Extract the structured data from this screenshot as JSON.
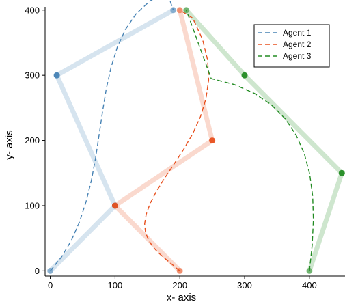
{
  "chart_data": {
    "type": "line",
    "xlabel": "x- axis",
    "ylabel": "y- axis",
    "xlim": [
      -8,
      455
    ],
    "ylim": [
      -8,
      405
    ],
    "xticks": [
      0,
      100,
      200,
      300,
      400
    ],
    "yticks": [
      0,
      100,
      200,
      300,
      400
    ],
    "grid": false,
    "legend_position": "top-right",
    "series": [
      {
        "name": "Agent 1",
        "color": "#4682b4",
        "control_points": [
          [
            0,
            0
          ],
          [
            100,
            100
          ],
          [
            10,
            300
          ],
          [
            190,
            400
          ]
        ],
        "curve": [
          [
            0,
            0
          ],
          [
            17.3,
            21.2
          ],
          [
            32.4,
            46.3
          ],
          [
            45.0,
            74.8
          ],
          [
            55.3,
            106.1
          ],
          [
            63.6,
            139.4
          ],
          [
            70.2,
            174.2
          ],
          [
            75.5,
            209.6
          ],
          [
            80.8,
            244.9
          ],
          [
            86.5,
            279.4
          ],
          [
            93.9,
            312.3
          ],
          [
            103.4,
            342.9
          ],
          [
            116.1,
            370.5
          ],
          [
            132.6,
            394.4
          ],
          [
            153.8,
            413.9
          ],
          [
            180.0,
            428.1
          ],
          [
            190,
            400
          ]
        ],
        "line_style": "dashed"
      },
      {
        "name": "Agent 2",
        "color": "#e8501e",
        "control_points": [
          [
            200,
            0
          ],
          [
            100,
            100
          ],
          [
            250,
            200
          ],
          [
            200,
            400
          ]
        ],
        "curve": [
          [
            200,
            0
          ],
          [
            188.3,
            9.7
          ],
          [
            176.9,
            19.0
          ],
          [
            166.3,
            28.2
          ],
          [
            157.7,
            37.9
          ],
          [
            151.2,
            48.2
          ],
          [
            146.9,
            59.4
          ],
          [
            145.7,
            72.1
          ],
          [
            148.1,
            86.8
          ],
          [
            154.2,
            103.5
          ],
          [
            163.8,
            121.9
          ],
          [
            176.3,
            141.9
          ],
          [
            190.8,
            163.4
          ],
          [
            205.8,
            186.2
          ],
          [
            219.9,
            210.5
          ],
          [
            231.8,
            236.4
          ],
          [
            240.3,
            263.8
          ],
          [
            244.5,
            292.7
          ],
          [
            243.0,
            322.9
          ],
          [
            235.2,
            354.6
          ],
          [
            220.0,
            387.6
          ],
          [
            200,
            400
          ]
        ],
        "line_style": "dashed"
      },
      {
        "name": "Agent 3",
        "color": "#228b22",
        "control_points": [
          [
            400,
            0
          ],
          [
            450,
            150
          ],
          [
            300,
            300
          ],
          [
            210,
            400
          ]
        ],
        "curve": [
          [
            400,
            0
          ],
          [
            404.4,
            39.8
          ],
          [
            406.2,
            78.1
          ],
          [
            405.1,
            114.4
          ],
          [
            400.5,
            148.5
          ],
          [
            392.1,
            179.8
          ],
          [
            379.5,
            208.2
          ],
          [
            362.7,
            233.3
          ],
          [
            341.4,
            254.7
          ],
          [
            315.3,
            272.2
          ],
          [
            284.4,
            285.7
          ],
          [
            248.4,
            294.9
          ],
          [
            210,
            400
          ]
        ],
        "line_style": "dashed"
      }
    ]
  },
  "legend": {
    "items": [
      {
        "label": "Agent 1",
        "color": "#4682b4"
      },
      {
        "label": "Agent 2",
        "color": "#e8501e"
      },
      {
        "label": "Agent 3",
        "color": "#228b22"
      }
    ]
  }
}
